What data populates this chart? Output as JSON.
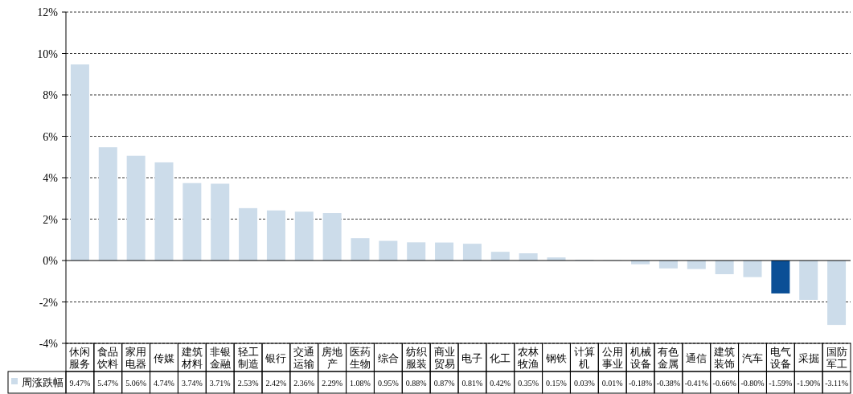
{
  "chart_data": {
    "type": "bar",
    "categories": [
      "休闲服务",
      "食品饮料",
      "家用电器",
      "传媒",
      "建筑材料",
      "非银金融",
      "轻工制造",
      "银行",
      "交通运输",
      "房地产",
      "医药生物",
      "综合",
      "纺织服装",
      "商业贸易",
      "电子",
      "化工",
      "农林牧渔",
      "钢铁",
      "计算机",
      "公用事业",
      "机械设备",
      "有色金属",
      "通信",
      "建筑装饰",
      "汽车",
      "电气设备",
      "采掘",
      "国防军工"
    ],
    "series": [
      {
        "name": "周涨跌幅",
        "color": "#ccdcea",
        "colors": [
          "#ccdcea",
          "#ccdcea",
          "#ccdcea",
          "#ccdcea",
          "#ccdcea",
          "#ccdcea",
          "#ccdcea",
          "#ccdcea",
          "#ccdcea",
          "#ccdcea",
          "#ccdcea",
          "#ccdcea",
          "#ccdcea",
          "#ccdcea",
          "#ccdcea",
          "#ccdcea",
          "#ccdcea",
          "#ccdcea",
          "#ccdcea",
          "#ccdcea",
          "#ccdcea",
          "#ccdcea",
          "#ccdcea",
          "#ccdcea",
          "#ccdcea",
          "#0b4f96",
          "#ccdcea",
          "#ccdcea"
        ],
        "values": [
          9.47,
          5.47,
          5.06,
          4.74,
          3.74,
          3.71,
          2.53,
          2.42,
          2.36,
          2.29,
          1.08,
          0.95,
          0.88,
          0.87,
          0.81,
          0.42,
          0.35,
          0.15,
          0.03,
          0.01,
          -0.18,
          -0.38,
          -0.41,
          -0.66,
          -0.8,
          -1.59,
          -1.9,
          -3.11
        ],
        "value_labels": [
          "9.47%",
          "5.47%",
          "5.06%",
          "4.74%",
          "3.74%",
          "3.71%",
          "2.53%",
          "2.42%",
          "2.36%",
          "2.29%",
          "1.08%",
          "0.95%",
          "0.88%",
          "0.87%",
          "0.81%",
          "0.42%",
          "0.35%",
          "0.15%",
          "0.03%",
          "0.01%",
          "-0.18%",
          "-0.38%",
          "-0.41%",
          "-0.66%",
          "-0.80%",
          "-1.59%",
          "-1.90%",
          "-3.11%"
        ]
      }
    ],
    "ylim": [
      -4,
      12
    ],
    "yticks": [
      {
        "value": -4,
        "label": "-4%"
      },
      {
        "value": -2,
        "label": "-2%"
      },
      {
        "value": 0,
        "label": "0%"
      },
      {
        "value": 2,
        "label": "2%"
      },
      {
        "value": 4,
        "label": "4%"
      },
      {
        "value": 6,
        "label": "6%"
      },
      {
        "value": 8,
        "label": "8%"
      },
      {
        "value": 10,
        "label": "10%"
      },
      {
        "value": 12,
        "label": "12%"
      }
    ],
    "grid": "y",
    "legend": "bottom left"
  }
}
